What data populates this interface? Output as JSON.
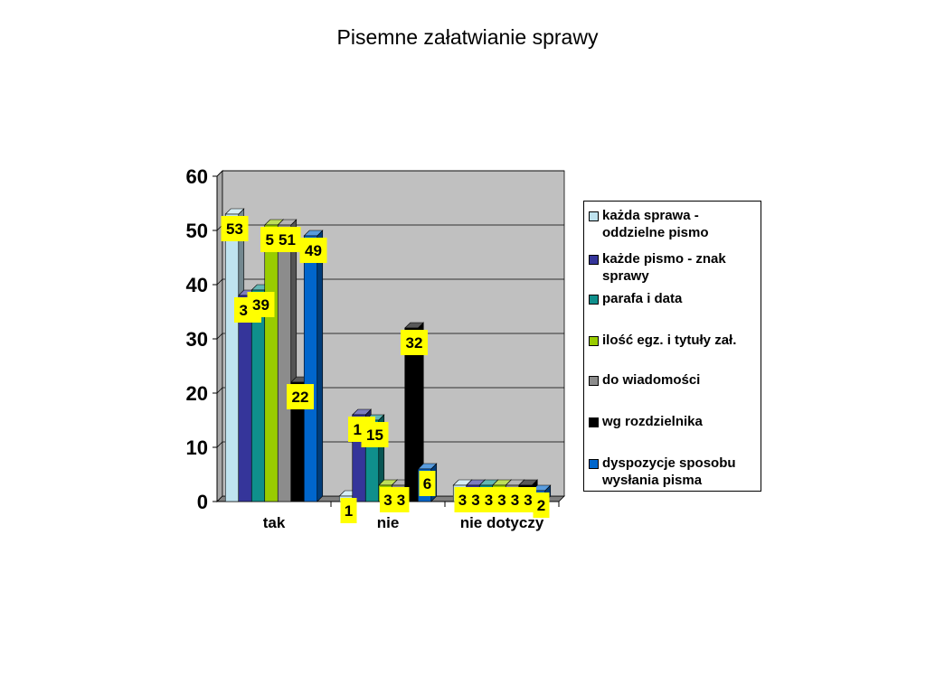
{
  "chart_data": {
    "type": "bar",
    "title": "Pisemne załatwianie sprawy",
    "categories": [
      "tak",
      "nie",
      "nie dotyczy"
    ],
    "ylim": [
      0,
      60
    ],
    "yticks": [
      "0",
      "10",
      "20",
      "30",
      "40",
      "50",
      "60"
    ],
    "grid": true,
    "legend_position": "right",
    "series": [
      {
        "name": "każda sprawa - oddzielne pismo",
        "values": [
          53,
          1,
          3
        ],
        "color": "#bfe3ef"
      },
      {
        "name": "każde pismo - znak sprawy",
        "values": [
          38,
          16,
          3
        ],
        "color": "#35359a"
      },
      {
        "name": "parafa i data",
        "values": [
          39,
          15,
          3
        ],
        "color": "#0f8f8c"
      },
      {
        "name": "ilość egz. i tytuły zał.",
        "values": [
          51,
          3,
          3
        ],
        "color": "#99cc00"
      },
      {
        "name": "do wiadomości",
        "values": [
          51,
          3,
          3
        ],
        "color": "#8c8c8c"
      },
      {
        "name": "wg rozdzielnika",
        "values": [
          22,
          32,
          3
        ],
        "color": "#000000"
      },
      {
        "name": "dyspozycje sposobu wysłania pisma",
        "values": [
          49,
          6,
          2
        ],
        "color": "#0066cc"
      }
    ]
  }
}
